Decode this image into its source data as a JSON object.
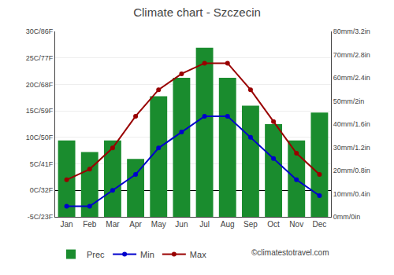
{
  "chart_data": {
    "type": "bar",
    "title": "Climate chart - Szczecin",
    "categories": [
      "Jan",
      "Feb",
      "Mar",
      "Apr",
      "May",
      "Jun",
      "Jul",
      "Aug",
      "Sep",
      "Oct",
      "Nov",
      "Dec"
    ],
    "series": [
      {
        "name": "Prec",
        "type": "bar",
        "color": "#1a8c2e",
        "axis": "y2",
        "values": [
          33,
          28,
          33,
          25,
          52,
          60,
          73,
          60,
          48,
          40,
          33,
          45
        ]
      },
      {
        "name": "Min",
        "type": "line",
        "color": "#0000cc",
        "marker": "circle",
        "values": [
          -3,
          -3,
          0,
          3,
          8,
          11,
          14,
          14,
          10,
          6,
          2,
          -1
        ]
      },
      {
        "name": "Max",
        "type": "line",
        "color": "#990000",
        "marker": "circle",
        "values": [
          2,
          4,
          8,
          14,
          19,
          22,
          24,
          24,
          19,
          13,
          7,
          3
        ]
      }
    ],
    "ylim": [
      -5,
      30
    ],
    "yticks": [
      {
        "value": -5,
        "label": "-5C/23F"
      },
      {
        "value": 0,
        "label": "0C/32F"
      },
      {
        "value": 5,
        "label": "5C/41F"
      },
      {
        "value": 10,
        "label": "10C/50F"
      },
      {
        "value": 15,
        "label": "15C/59F"
      },
      {
        "value": 20,
        "label": "20C/68F"
      },
      {
        "value": 25,
        "label": "25C/77F"
      },
      {
        "value": 30,
        "label": "30C/86F"
      }
    ],
    "y2lim": [
      0,
      80
    ],
    "y2ticks": [
      {
        "value": 0,
        "label": "0mm/0in"
      },
      {
        "value": 10,
        "label": "10mm/0.4in"
      },
      {
        "value": 20,
        "label": "20mm/0.8in"
      },
      {
        "value": 30,
        "label": "30mm/1.2in"
      },
      {
        "value": 40,
        "label": "40mm/1.6in"
      },
      {
        "value": 50,
        "label": "50mm/2in"
      },
      {
        "value": 60,
        "label": "60mm/2.4in"
      },
      {
        "value": 70,
        "label": "70mm/2.8in"
      },
      {
        "value": 80,
        "label": "80mm/3.2in"
      }
    ],
    "grid": true,
    "legend": "bottom",
    "annotations": [
      "©climatestotravel.com"
    ]
  }
}
